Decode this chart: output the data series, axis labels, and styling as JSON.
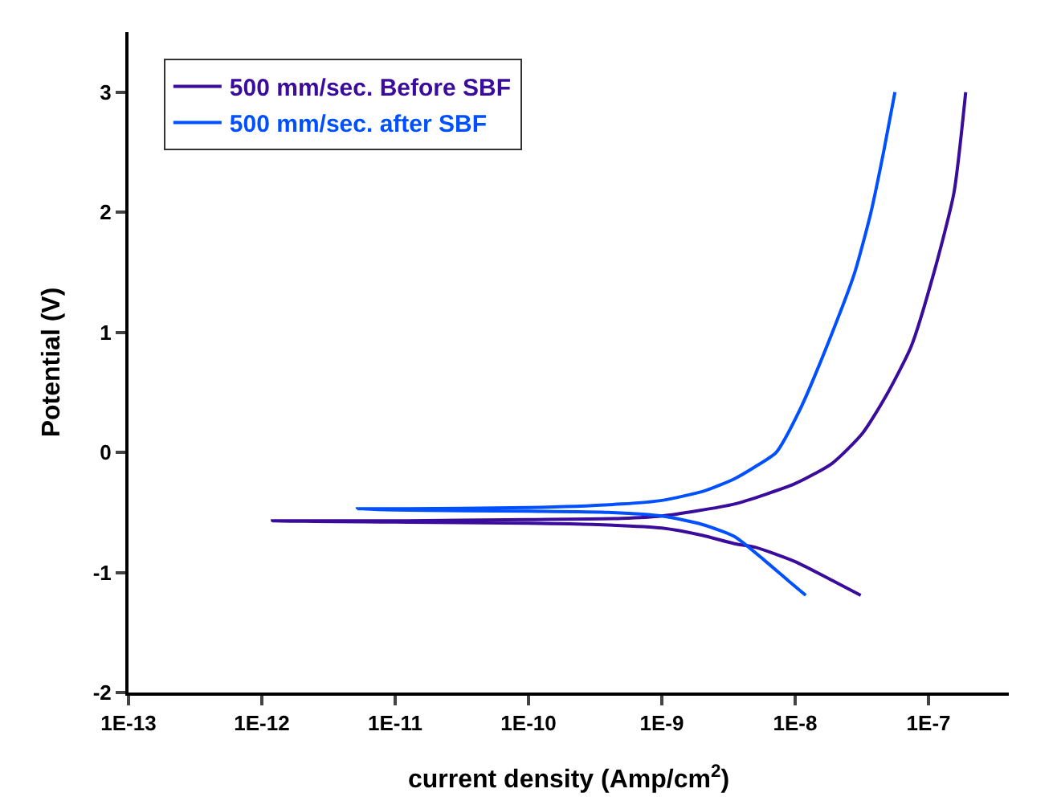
{
  "chart_data": {
    "type": "line",
    "xlabel": "current density (Amp/cm$^{2}$)",
    "ylabel": "Potential (V)",
    "log": "x",
    "xlim": [
      1e-13,
      4e-07
    ],
    "xticks": [
      {
        "value": 1e-13,
        "label": "1E-13"
      },
      {
        "value": 1e-12,
        "label": "1E-12"
      },
      {
        "value": 1e-11,
        "label": "1E-11"
      },
      {
        "value": 1e-10,
        "label": "1E-10"
      },
      {
        "value": 1e-09,
        "label": "1E-9"
      },
      {
        "value": 1e-08,
        "label": "1E-8"
      },
      {
        "value": 1e-07,
        "label": "1E-7"
      }
    ],
    "ylim": [
      -2,
      3.5
    ],
    "yticks": [
      -2,
      -1,
      0,
      1,
      2,
      3
    ],
    "grid": false,
    "legend": "top left",
    "marker": "none",
    "line_style": "solid",
    "series": [
      {
        "name": "500 mm/sec. Before SBF",
        "color": "#3a0c9c",
        "x": [
          3.1e-08,
          2e-08,
          1e-08,
          5e-09,
          3.5e-09,
          2e-09,
          1e-09,
          3e-10,
          1e-10,
          1e-11,
          1.2e-12,
          1e-11,
          1e-10,
          5e-10,
          1e-09,
          3.5e-09,
          1e-08,
          1.9e-08,
          3.2e-08,
          4.8e-08,
          7.4e-08,
          1.1e-07,
          1.55e-07,
          1.9e-07
        ],
        "values": [
          -1.19,
          -1.08,
          -0.91,
          -0.79,
          -0.76,
          -0.69,
          -0.63,
          -0.6,
          -0.59,
          -0.58,
          -0.57,
          -0.57,
          -0.56,
          -0.55,
          -0.53,
          -0.43,
          -0.26,
          -0.09,
          0.16,
          0.47,
          0.88,
          1.5,
          2.16,
          3.0
        ]
      },
      {
        "name": "500 mm/sec. after SBF",
        "color": "#0050ff",
        "x": [
          1.2e-08,
          8.9e-09,
          5.9e-09,
          3.5e-09,
          2e-09,
          1e-09,
          4e-10,
          1e-10,
          1e-11,
          5.2e-12,
          1e-11,
          1e-10,
          5e-10,
          1e-09,
          2.1e-09,
          3.5e-09,
          5e-09,
          7.2e-09,
          1.1e-08,
          1.9e-08,
          2.8e-08,
          3.7e-08,
          4.6e-08,
          5.6e-08
        ],
        "values": [
          -1.19,
          -1.07,
          -0.9,
          -0.7,
          -0.6,
          -0.53,
          -0.5,
          -0.49,
          -0.48,
          -0.47,
          -0.47,
          -0.46,
          -0.43,
          -0.4,
          -0.32,
          -0.22,
          -0.12,
          0,
          0.37,
          1,
          1.5,
          2,
          2.5,
          3
        ]
      }
    ]
  }
}
